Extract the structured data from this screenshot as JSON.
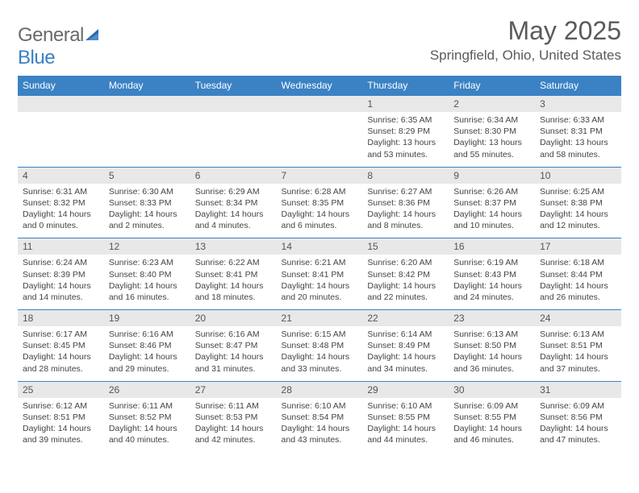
{
  "brand": {
    "part1": "General",
    "part2": "Blue"
  },
  "title": "May 2025",
  "location": "Springfield, Ohio, United States",
  "colors": {
    "header_bg": "#3b82c4",
    "header_text": "#ffffff",
    "daynum_bg": "#e8e8e8",
    "border": "#3b82c4",
    "text": "#444444",
    "title_text": "#5a5a5a"
  },
  "dayNames": [
    "Sunday",
    "Monday",
    "Tuesday",
    "Wednesday",
    "Thursday",
    "Friday",
    "Saturday"
  ],
  "weeks": [
    [
      null,
      null,
      null,
      null,
      {
        "n": "1",
        "sr": "6:35 AM",
        "ss": "8:29 PM",
        "dl": "13 hours and 53 minutes."
      },
      {
        "n": "2",
        "sr": "6:34 AM",
        "ss": "8:30 PM",
        "dl": "13 hours and 55 minutes."
      },
      {
        "n": "3",
        "sr": "6:33 AM",
        "ss": "8:31 PM",
        "dl": "13 hours and 58 minutes."
      }
    ],
    [
      {
        "n": "4",
        "sr": "6:31 AM",
        "ss": "8:32 PM",
        "dl": "14 hours and 0 minutes."
      },
      {
        "n": "5",
        "sr": "6:30 AM",
        "ss": "8:33 PM",
        "dl": "14 hours and 2 minutes."
      },
      {
        "n": "6",
        "sr": "6:29 AM",
        "ss": "8:34 PM",
        "dl": "14 hours and 4 minutes."
      },
      {
        "n": "7",
        "sr": "6:28 AM",
        "ss": "8:35 PM",
        "dl": "14 hours and 6 minutes."
      },
      {
        "n": "8",
        "sr": "6:27 AM",
        "ss": "8:36 PM",
        "dl": "14 hours and 8 minutes."
      },
      {
        "n": "9",
        "sr": "6:26 AM",
        "ss": "8:37 PM",
        "dl": "14 hours and 10 minutes."
      },
      {
        "n": "10",
        "sr": "6:25 AM",
        "ss": "8:38 PM",
        "dl": "14 hours and 12 minutes."
      }
    ],
    [
      {
        "n": "11",
        "sr": "6:24 AM",
        "ss": "8:39 PM",
        "dl": "14 hours and 14 minutes."
      },
      {
        "n": "12",
        "sr": "6:23 AM",
        "ss": "8:40 PM",
        "dl": "14 hours and 16 minutes."
      },
      {
        "n": "13",
        "sr": "6:22 AM",
        "ss": "8:41 PM",
        "dl": "14 hours and 18 minutes."
      },
      {
        "n": "14",
        "sr": "6:21 AM",
        "ss": "8:41 PM",
        "dl": "14 hours and 20 minutes."
      },
      {
        "n": "15",
        "sr": "6:20 AM",
        "ss": "8:42 PM",
        "dl": "14 hours and 22 minutes."
      },
      {
        "n": "16",
        "sr": "6:19 AM",
        "ss": "8:43 PM",
        "dl": "14 hours and 24 minutes."
      },
      {
        "n": "17",
        "sr": "6:18 AM",
        "ss": "8:44 PM",
        "dl": "14 hours and 26 minutes."
      }
    ],
    [
      {
        "n": "18",
        "sr": "6:17 AM",
        "ss": "8:45 PM",
        "dl": "14 hours and 28 minutes."
      },
      {
        "n": "19",
        "sr": "6:16 AM",
        "ss": "8:46 PM",
        "dl": "14 hours and 29 minutes."
      },
      {
        "n": "20",
        "sr": "6:16 AM",
        "ss": "8:47 PM",
        "dl": "14 hours and 31 minutes."
      },
      {
        "n": "21",
        "sr": "6:15 AM",
        "ss": "8:48 PM",
        "dl": "14 hours and 33 minutes."
      },
      {
        "n": "22",
        "sr": "6:14 AM",
        "ss": "8:49 PM",
        "dl": "14 hours and 34 minutes."
      },
      {
        "n": "23",
        "sr": "6:13 AM",
        "ss": "8:50 PM",
        "dl": "14 hours and 36 minutes."
      },
      {
        "n": "24",
        "sr": "6:13 AM",
        "ss": "8:51 PM",
        "dl": "14 hours and 37 minutes."
      }
    ],
    [
      {
        "n": "25",
        "sr": "6:12 AM",
        "ss": "8:51 PM",
        "dl": "14 hours and 39 minutes."
      },
      {
        "n": "26",
        "sr": "6:11 AM",
        "ss": "8:52 PM",
        "dl": "14 hours and 40 minutes."
      },
      {
        "n": "27",
        "sr": "6:11 AM",
        "ss": "8:53 PM",
        "dl": "14 hours and 42 minutes."
      },
      {
        "n": "28",
        "sr": "6:10 AM",
        "ss": "8:54 PM",
        "dl": "14 hours and 43 minutes."
      },
      {
        "n": "29",
        "sr": "6:10 AM",
        "ss": "8:55 PM",
        "dl": "14 hours and 44 minutes."
      },
      {
        "n": "30",
        "sr": "6:09 AM",
        "ss": "8:55 PM",
        "dl": "14 hours and 46 minutes."
      },
      {
        "n": "31",
        "sr": "6:09 AM",
        "ss": "8:56 PM",
        "dl": "14 hours and 47 minutes."
      }
    ]
  ],
  "labels": {
    "sunrise": "Sunrise:",
    "sunset": "Sunset:",
    "daylight": "Daylight:"
  }
}
